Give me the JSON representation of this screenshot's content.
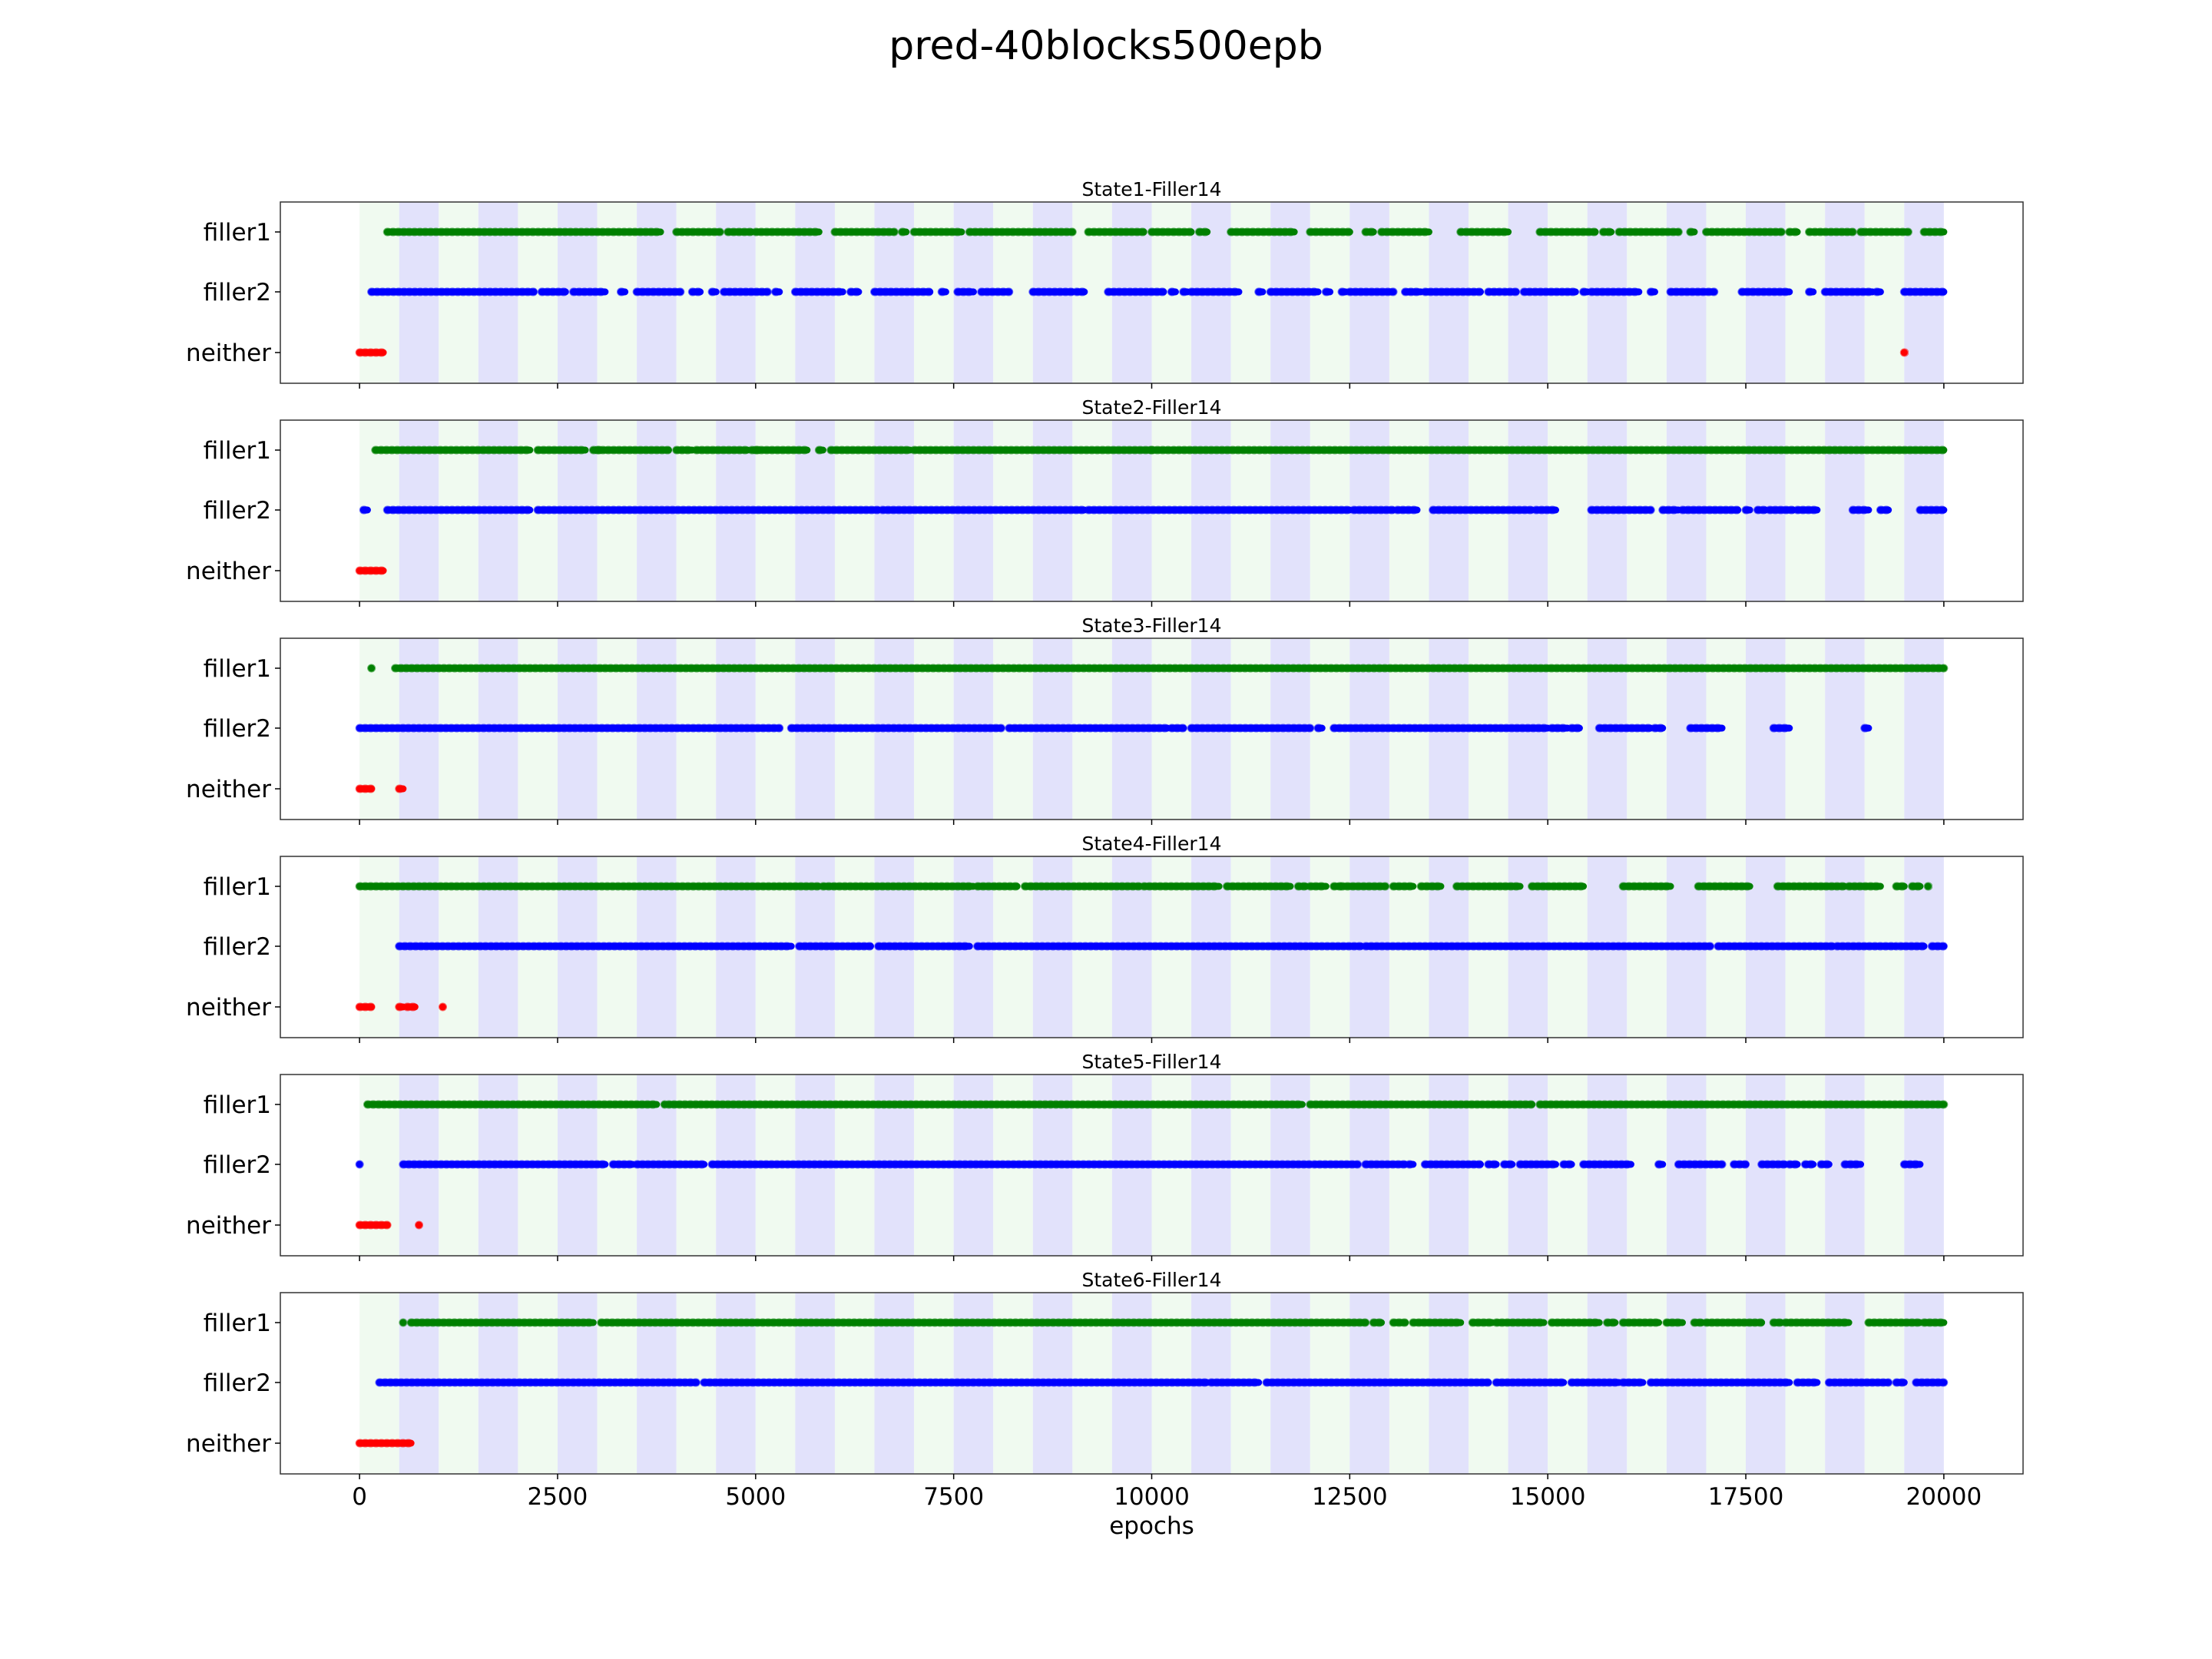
{
  "title": "pred-40blocks500epb",
  "chart_data": {
    "type": "scatter",
    "xlabel": "epochs",
    "xlim": [
      -1000,
      21000
    ],
    "xticks": [
      0,
      2500,
      5000,
      7500,
      10000,
      12500,
      15000,
      17500,
      20000
    ],
    "xtick_labels": [
      "0",
      "2500",
      "5000",
      "7500",
      "10000",
      "12500",
      "15000",
      "17500",
      "20000"
    ],
    "categories": [
      "filler1",
      "filler2",
      "neither"
    ],
    "colors": {
      "filler1": "#008000",
      "filler2": "#0000ff",
      "neither": "#ff0000",
      "band_green": "#f0faf0",
      "band_blue": "#e2e2fb"
    },
    "background_blocks": {
      "block_size": 500,
      "count": 40,
      "start": 0,
      "pattern": [
        "band_green",
        "band_blue"
      ]
    },
    "panels": [
      {
        "title": "State1-Filler14",
        "filler1": [
          [
            350,
            3800
          ],
          [
            4000,
            4550
          ],
          [
            4650,
            4950
          ],
          [
            5000,
            5800
          ],
          [
            6000,
            6750
          ],
          [
            6850,
            6900
          ],
          [
            7000,
            7600
          ],
          [
            7700,
            9000
          ],
          [
            9200,
            9900
          ],
          [
            10000,
            10500
          ],
          [
            10600,
            10700
          ],
          [
            11000,
            11800
          ],
          [
            12000,
            12500
          ],
          [
            12700,
            12800
          ],
          [
            12900,
            13500
          ],
          [
            13900,
            14500
          ],
          [
            14900,
            15600
          ],
          [
            15700,
            15800
          ],
          [
            15900,
            16650
          ],
          [
            16800,
            16850
          ],
          [
            17000,
            17550
          ],
          [
            17600,
            17950
          ],
          [
            18050,
            18150
          ],
          [
            18300,
            18850
          ],
          [
            18950,
            19000
          ],
          [
            19000,
            19550
          ],
          [
            19750,
            20000
          ]
        ],
        "filler2": [
          [
            150,
            2200
          ],
          [
            2300,
            2600
          ],
          [
            2700,
            3100
          ],
          [
            3300,
            3350
          ],
          [
            3500,
            4050
          ],
          [
            4200,
            4300
          ],
          [
            4450,
            4500
          ],
          [
            4600,
            5150
          ],
          [
            5250,
            5300
          ],
          [
            5500,
            6100
          ],
          [
            6200,
            6300
          ],
          [
            6500,
            7200
          ],
          [
            7350,
            7400
          ],
          [
            7550,
            7750
          ],
          [
            7850,
            8200
          ],
          [
            8500,
            9000
          ],
          [
            9050,
            9150
          ],
          [
            9450,
            10150
          ],
          [
            10250,
            10300
          ],
          [
            10400,
            10450
          ],
          [
            10500,
            11100
          ],
          [
            11350,
            11400
          ],
          [
            11500,
            12100
          ],
          [
            12200,
            12250
          ],
          [
            12400,
            12450
          ],
          [
            12500,
            13050
          ],
          [
            13200,
            13400
          ],
          [
            13450,
            14150
          ],
          [
            14250,
            14400
          ],
          [
            14450,
            14600
          ],
          [
            14700,
            15350
          ],
          [
            15450,
            15500
          ],
          [
            15550,
            16150
          ],
          [
            16300,
            16350
          ],
          [
            16550,
            17100
          ],
          [
            17450,
            18050
          ],
          [
            18300,
            18350
          ],
          [
            18500,
            19100
          ],
          [
            19150,
            19200
          ],
          [
            19500,
            20000
          ]
        ],
        "neither": [
          [
            0,
            300
          ],
          [
            19500,
            19500
          ]
        ]
      },
      {
        "title": "State2-Filler14",
        "filler1": [
          [
            200,
            2150
          ],
          [
            2250,
            2850
          ],
          [
            2950,
            3050
          ],
          [
            3000,
            3900
          ],
          [
            4000,
            4200
          ],
          [
            4250,
            4900
          ],
          [
            4950,
            5050
          ],
          [
            5000,
            5650
          ],
          [
            5800,
            5850
          ],
          [
            5950,
            6950
          ],
          [
            7000,
            10000
          ],
          [
            10000,
            20000
          ]
        ],
        "filler2": [
          [
            50,
            100
          ],
          [
            350,
            2150
          ],
          [
            2250,
            6550
          ],
          [
            6600,
            9150
          ],
          [
            9200,
            12500
          ],
          [
            12550,
            13050
          ],
          [
            13100,
            13350
          ],
          [
            13550,
            14800
          ],
          [
            14850,
            15100
          ],
          [
            15550,
            16300
          ],
          [
            16450,
            16650
          ],
          [
            16700,
            17400
          ],
          [
            17500,
            17550
          ],
          [
            17650,
            17750
          ],
          [
            17800,
            18100
          ],
          [
            18150,
            18400
          ],
          [
            18850,
            19050
          ],
          [
            19200,
            19300
          ],
          [
            19700,
            20000
          ]
        ],
        "neither": [
          [
            0,
            300
          ]
        ]
      },
      {
        "title": "State3-Filler14",
        "filler1": [
          [
            150,
            150
          ],
          [
            450,
            20000
          ]
        ],
        "filler2": [
          [
            0,
            5300
          ],
          [
            5450,
            8100
          ],
          [
            8200,
            9500
          ],
          [
            9550,
            10200
          ],
          [
            10250,
            10400
          ],
          [
            10500,
            12000
          ],
          [
            12100,
            12150
          ],
          [
            12300,
            15000
          ],
          [
            15050,
            15250
          ],
          [
            15300,
            15400
          ],
          [
            15650,
            16300
          ],
          [
            16350,
            16450
          ],
          [
            16800,
            17200
          ],
          [
            17850,
            18050
          ],
          [
            19000,
            19050
          ]
        ],
        "neither": [
          [
            0,
            150
          ],
          [
            500,
            550
          ]
        ]
      },
      {
        "title": "State4-Filler14",
        "filler1": [
          [
            0,
            5800
          ],
          [
            5850,
            7750
          ],
          [
            7800,
            8300
          ],
          [
            8400,
            9850
          ],
          [
            9900,
            10850
          ],
          [
            10950,
            11750
          ],
          [
            11850,
            11950
          ],
          [
            12000,
            12200
          ],
          [
            12300,
            12400
          ],
          [
            12400,
            12950
          ],
          [
            13050,
            13300
          ],
          [
            13400,
            13650
          ],
          [
            13850,
            14650
          ],
          [
            14800,
            15450
          ],
          [
            15950,
            16550
          ],
          [
            16900,
            17550
          ],
          [
            17900,
            18750
          ],
          [
            18800,
            19200
          ],
          [
            19400,
            19500
          ],
          [
            19600,
            19700
          ],
          [
            19800,
            19800
          ]
        ],
        "filler2": [
          [
            500,
            5450
          ],
          [
            5550,
            6450
          ],
          [
            6550,
            7700
          ],
          [
            7800,
            12650
          ],
          [
            12700,
            17050
          ],
          [
            17150,
            18600
          ],
          [
            18650,
            19400
          ],
          [
            19450,
            19750
          ],
          [
            19850,
            20000
          ]
        ],
        "neither": [
          [
            0,
            150
          ],
          [
            500,
            550
          ],
          [
            600,
            700
          ],
          [
            1050,
            1050
          ]
        ]
      },
      {
        "title": "State5-Filler14",
        "filler1": [
          [
            100,
            3750
          ],
          [
            3850,
            3850
          ],
          [
            3900,
            11900
          ],
          [
            12000,
            14800
          ],
          [
            14900,
            20000
          ]
        ],
        "filler2": [
          [
            0,
            0
          ],
          [
            550,
            3100
          ],
          [
            3200,
            3450
          ],
          [
            3500,
            4350
          ],
          [
            4450,
            12000
          ],
          [
            12050,
            12600
          ],
          [
            12700,
            13200
          ],
          [
            13250,
            13300
          ],
          [
            13450,
            14150
          ],
          [
            14250,
            14350
          ],
          [
            14450,
            14550
          ],
          [
            14650,
            15100
          ],
          [
            15200,
            15300
          ],
          [
            15450,
            16050
          ],
          [
            16400,
            16450
          ],
          [
            16650,
            17200
          ],
          [
            17350,
            17500
          ],
          [
            17700,
            18000
          ],
          [
            18050,
            18150
          ],
          [
            18250,
            18350
          ],
          [
            18450,
            18550
          ],
          [
            18750,
            18950
          ],
          [
            19500,
            19700
          ]
        ],
        "neither": [
          [
            0,
            350
          ],
          [
            750,
            750
          ]
        ]
      },
      {
        "title": "State6-Filler14",
        "filler1": [
          [
            550,
            550
          ],
          [
            650,
            2950
          ],
          [
            3050,
            12700
          ],
          [
            12800,
            12900
          ],
          [
            13050,
            13200
          ],
          [
            13300,
            13900
          ],
          [
            14050,
            14300
          ],
          [
            14350,
            14950
          ],
          [
            15050,
            15650
          ],
          [
            15750,
            15850
          ],
          [
            15950,
            16400
          ],
          [
            16500,
            16700
          ],
          [
            16850,
            16950
          ],
          [
            17000,
            17700
          ],
          [
            17850,
            17950
          ],
          [
            18000,
            18400
          ],
          [
            18400,
            18800
          ],
          [
            19050,
            19700
          ],
          [
            19750,
            20000
          ]
        ],
        "filler2": [
          [
            250,
            2900
          ],
          [
            2950,
            4250
          ],
          [
            4350,
            10700
          ],
          [
            10750,
            11350
          ],
          [
            11450,
            14250
          ],
          [
            14350,
            15200
          ],
          [
            15300,
            15900
          ],
          [
            15950,
            16200
          ],
          [
            16300,
            18050
          ],
          [
            18150,
            18400
          ],
          [
            18550,
            19300
          ],
          [
            19400,
            19500
          ],
          [
            19650,
            20000
          ]
        ],
        "neither": [
          [
            0,
            650
          ]
        ]
      }
    ]
  }
}
